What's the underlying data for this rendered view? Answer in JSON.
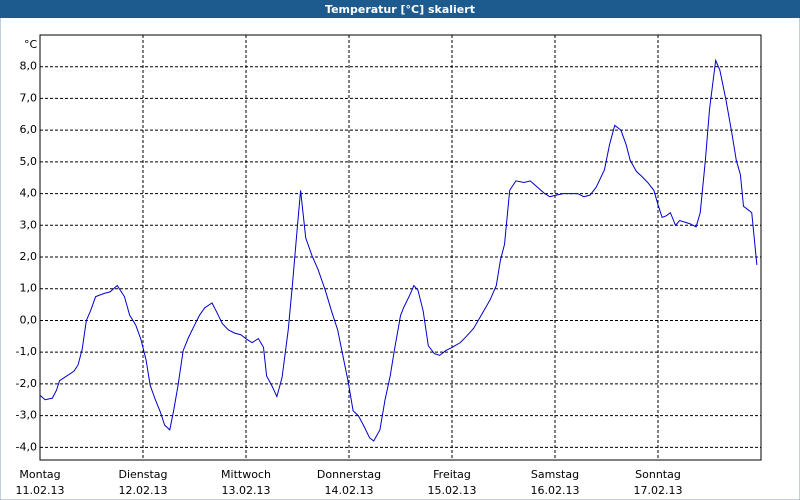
{
  "chart_data": {
    "type": "line",
    "title": "Temperatur [°C] skaliert",
    "y_label": "°C",
    "color": "#0000cc",
    "grid": true,
    "xlim": [
      0,
      7
    ],
    "xticks": [
      {
        "value": 0,
        "label": "Montag"
      },
      {
        "value": 1,
        "label": "Dienstag"
      },
      {
        "value": 2,
        "label": "Mittwoch"
      },
      {
        "value": 3,
        "label": "Donnerstag"
      },
      {
        "value": 4,
        "label": "Freitag"
      },
      {
        "value": 5,
        "label": "Samstag"
      },
      {
        "value": 6,
        "label": "Sonntag"
      }
    ],
    "xtick_dates": [
      "11.02.13",
      "12.02.13",
      "13.02.13",
      "14.02.13",
      "15.02.13",
      "16.02.13",
      "17.02.13"
    ],
    "ylim": [
      -4.4,
      9.0
    ],
    "yticks": [
      {
        "value": -4,
        "label": "-4,0"
      },
      {
        "value": -3,
        "label": "-3,0"
      },
      {
        "value": -2,
        "label": "-2,0"
      },
      {
        "value": -1,
        "label": "-1,0"
      },
      {
        "value": 0,
        "label": "0,0"
      },
      {
        "value": 1,
        "label": "1,0"
      },
      {
        "value": 2,
        "label": "2,0"
      },
      {
        "value": 3,
        "label": "3,0"
      },
      {
        "value": 4,
        "label": "4,0"
      },
      {
        "value": 5,
        "label": "5,0"
      },
      {
        "value": 6,
        "label": "6,0"
      },
      {
        "value": 7,
        "label": "7,0"
      },
      {
        "value": 8,
        "label": "8,0"
      }
    ],
    "x": [
      0,
      0.05,
      0.12,
      0.16,
      0.19,
      0.26,
      0.33,
      0.37,
      0.41,
      0.45,
      0.49,
      0.54,
      0.62,
      0.68,
      0.75,
      0.82,
      0.87,
      0.93,
      0.98,
      1.03,
      1.07,
      1.12,
      1.17,
      1.21,
      1.26,
      1.3,
      1.34,
      1.39,
      1.44,
      1.5,
      1.55,
      1.6,
      1.67,
      1.71,
      1.77,
      1.83,
      1.89,
      1.95,
      2.01,
      2.06,
      2.12,
      2.17,
      2.2,
      2.25,
      2.3,
      2.35,
      2.41,
      2.45,
      2.5,
      2.53,
      2.58,
      2.64,
      2.7,
      2.77,
      2.83,
      2.89,
      2.94,
      2.99,
      3.04,
      3.09,
      3.14,
      3.2,
      3.24,
      3.3,
      3.35,
      3.4,
      3.44,
      3.5,
      3.53,
      3.59,
      3.63,
      3.67,
      3.72,
      3.77,
      3.83,
      3.88,
      3.94,
      4.0,
      4.08,
      4.14,
      4.21,
      4.29,
      4.37,
      4.43,
      4.47,
      4.51,
      4.56,
      4.62,
      4.7,
      4.76,
      4.83,
      4.9,
      4.95,
      5.01,
      5.08,
      5.15,
      5.22,
      5.28,
      5.34,
      5.4,
      5.48,
      5.53,
      5.58,
      5.64,
      5.69,
      5.73,
      5.79,
      5.84,
      5.9,
      5.96,
      6.0,
      6.04,
      6.08,
      6.12,
      6.17,
      6.21,
      6.26,
      6.31,
      6.37,
      6.41,
      6.46,
      6.5,
      6.56,
      6.6,
      6.66,
      6.72,
      6.76,
      6.8,
      6.83,
      6.87,
      6.91,
      6.96
    ],
    "values": [
      -2.36,
      -2.5,
      -2.45,
      -2.2,
      -1.9,
      -1.75,
      -1.6,
      -1.4,
      -0.9,
      0.0,
      0.3,
      0.75,
      0.85,
      0.9,
      1.1,
      0.75,
      0.17,
      -0.15,
      -0.6,
      -1.25,
      -2.05,
      -2.5,
      -2.9,
      -3.3,
      -3.45,
      -2.8,
      -2.05,
      -0.95,
      -0.55,
      -0.15,
      0.17,
      0.4,
      0.55,
      0.3,
      -0.1,
      -0.3,
      -0.4,
      -0.45,
      -0.6,
      -0.7,
      -0.57,
      -0.85,
      -1.75,
      -2.05,
      -2.4,
      -1.8,
      -0.3,
      1.1,
      3.0,
      4.1,
      2.6,
      2.05,
      1.6,
      0.95,
      0.3,
      -0.3,
      -1.1,
      -1.9,
      -2.85,
      -3.0,
      -3.3,
      -3.7,
      -3.8,
      -3.45,
      -2.5,
      -1.75,
      -0.95,
      0.15,
      0.4,
      0.8,
      1.1,
      0.95,
      0.3,
      -0.8,
      -1.05,
      -1.1,
      -0.95,
      -0.85,
      -0.7,
      -0.5,
      -0.25,
      0.2,
      0.65,
      1.1,
      1.9,
      2.4,
      4.1,
      4.4,
      4.35,
      4.4,
      4.2,
      4.0,
      3.9,
      3.95,
      4.0,
      4.0,
      4.0,
      3.9,
      3.95,
      4.2,
      4.75,
      5.55,
      6.15,
      6.0,
      5.55,
      5.05,
      4.7,
      4.55,
      4.35,
      4.1,
      3.65,
      3.25,
      3.3,
      3.4,
      3.0,
      3.15,
      3.1,
      3.05,
      2.95,
      3.4,
      5.05,
      6.65,
      8.2,
      7.9,
      6.95,
      5.85,
      5.05,
      4.6,
      3.6,
      3.5,
      3.4,
      1.75
    ]
  }
}
